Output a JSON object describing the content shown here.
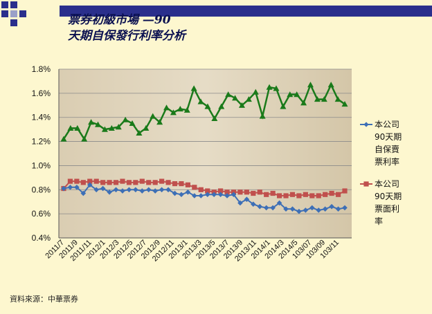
{
  "title_line1": "票券初級市場 —90",
  "title_line2": "天期自保發行利率分析",
  "source_note": "資料來源：中華票券",
  "chart_data": {
    "type": "line",
    "ylim": [
      0.4,
      1.8
    ],
    "yticks": [
      "0.4%",
      "0.6%",
      "0.8%",
      "1.0%",
      "1.2%",
      "1.4%",
      "1.6%",
      "1.8%"
    ],
    "xtick_labels": [
      "2011/7",
      "2011/9",
      "2011/11",
      "2012/1",
      "2012/3",
      "2012/5",
      "2012/7",
      "2012/9",
      "2012/11",
      "2013/1",
      "2013/3",
      "2013/5",
      "2013/7",
      "2013/9",
      "2013/11",
      "2014/1",
      "2014/3",
      "2014/5",
      "103/07",
      "103/09",
      "103/11"
    ],
    "grid": true,
    "legend_position": "right",
    "series": [
      {
        "name": "本公司90天期自保賣票利率",
        "color": "#3d6fb6",
        "marker": "diamond",
        "values": [
          0.81,
          0.82,
          0.82,
          0.77,
          0.84,
          0.8,
          0.81,
          0.78,
          0.8,
          0.79,
          0.8,
          0.8,
          0.79,
          0.8,
          0.79,
          0.8,
          0.8,
          0.77,
          0.76,
          0.78,
          0.75,
          0.75,
          0.76,
          0.76,
          0.76,
          0.75,
          0.76,
          0.69,
          0.72,
          0.68,
          0.66,
          0.65,
          0.65,
          0.69,
          0.64,
          0.64,
          0.62,
          0.63,
          0.65,
          0.63,
          0.64,
          0.66,
          0.64,
          0.65
        ]
      },
      {
        "name": "本公司90天期票面利率",
        "color": "#c0504d",
        "marker": "square",
        "values": [
          0.81,
          0.87,
          0.87,
          0.86,
          0.87,
          0.87,
          0.86,
          0.86,
          0.86,
          0.87,
          0.86,
          0.86,
          0.87,
          0.86,
          0.86,
          0.87,
          0.86,
          0.85,
          0.85,
          0.84,
          0.82,
          0.8,
          0.79,
          0.78,
          0.79,
          0.78,
          0.78,
          0.78,
          0.78,
          0.77,
          0.78,
          0.76,
          0.77,
          0.75,
          0.75,
          0.76,
          0.75,
          0.76,
          0.75,
          0.75,
          0.76,
          0.77,
          0.76,
          0.79
        ]
      },
      {
        "name": "",
        "color": "#1a7a1a",
        "marker": "triangle",
        "values": [
          1.22,
          1.31,
          1.31,
          1.22,
          1.36,
          1.34,
          1.3,
          1.31,
          1.32,
          1.38,
          1.35,
          1.27,
          1.31,
          1.41,
          1.36,
          1.48,
          1.44,
          1.47,
          1.46,
          1.64,
          1.53,
          1.49,
          1.39,
          1.49,
          1.59,
          1.56,
          1.5,
          1.55,
          1.61,
          1.41,
          1.65,
          1.64,
          1.49,
          1.59,
          1.59,
          1.52,
          1.67,
          1.55,
          1.55,
          1.67,
          1.55,
          1.51
        ]
      }
    ],
    "legend": [
      {
        "lines": [
          "本公司",
          "90天期",
          "自保賣",
          "票利率"
        ],
        "color": "#3d6fb6",
        "marker": "diamond"
      },
      {
        "lines": [
          "本公司",
          "90天期",
          "票面利",
          "率"
        ],
        "color": "#c0504d",
        "marker": "square"
      }
    ]
  }
}
